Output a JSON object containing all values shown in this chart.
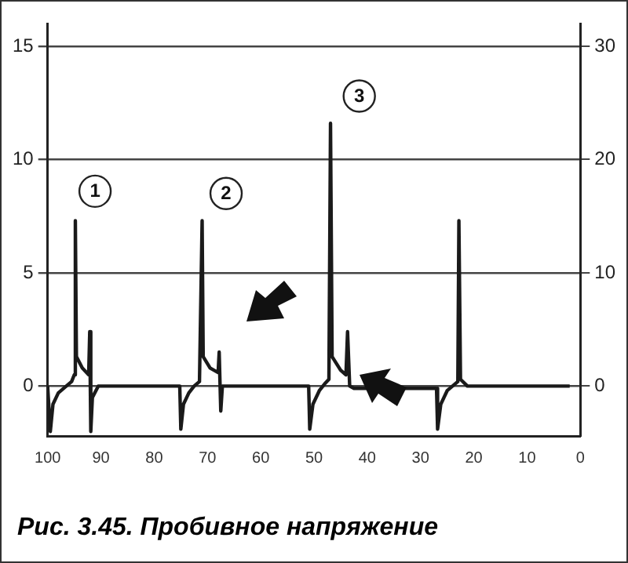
{
  "chart_data": {
    "type": "line",
    "color": "#1a1a1a",
    "x": [
      100,
      99.5,
      99,
      98,
      96.5,
      95.5,
      95,
      94.8,
      94.6,
      93.5,
      92.3,
      92.1,
      91.9,
      91.6,
      90.5,
      75.2,
      75,
      74.5,
      73.5,
      72.5,
      71.5,
      71,
      70.8,
      69.5,
      68,
      67.8,
      67.5,
      67.2,
      51,
      50.8,
      50.2,
      49,
      48,
      47.2,
      46.9,
      46.6,
      45,
      44,
      43.7,
      43.3,
      42.5,
      27,
      26.8,
      26.2,
      25,
      24,
      23,
      22.8,
      22.5,
      21.2,
      2
    ],
    "values": [
      0,
      -2,
      -0.8,
      -0.3,
      0,
      0.2,
      0.5,
      7.3,
      1.3,
      0.8,
      0.5,
      2.4,
      -2,
      -0.5,
      0,
      0,
      -1.9,
      -0.8,
      -0.3,
      0,
      0.2,
      7.3,
      1.3,
      0.8,
      0.6,
      1.5,
      -1.1,
      0,
      0,
      -1.9,
      -0.8,
      -0.2,
      0.1,
      0.3,
      11.6,
      1.3,
      0.7,
      0.5,
      2.4,
      0,
      -0.1,
      -0.1,
      -1.9,
      -0.8,
      -0.2,
      0,
      0.2,
      7.3,
      0.3,
      0,
      0
    ],
    "xlim": [
      100,
      0
    ],
    "xticks": [
      100,
      90,
      80,
      70,
      60,
      50,
      40,
      30,
      20,
      10,
      0
    ],
    "ylim": [
      -2.2,
      16
    ],
    "yticks": [
      0,
      5,
      10,
      15
    ],
    "y2lim": [
      -4.4,
      32
    ],
    "y2ticks": [
      0,
      10,
      20,
      30
    ],
    "grid": "y",
    "marker": "none",
    "line_style": "solid",
    "annotations": [
      {
        "text": "1",
        "x": 91.1,
        "y": 8.6
      },
      {
        "text": "2",
        "x": 66.5,
        "y": 8.5
      },
      {
        "text": "3",
        "x": 41.5,
        "y": 12.8
      },
      "Рис. 3.45. Пробивное напряжение"
    ]
  }
}
